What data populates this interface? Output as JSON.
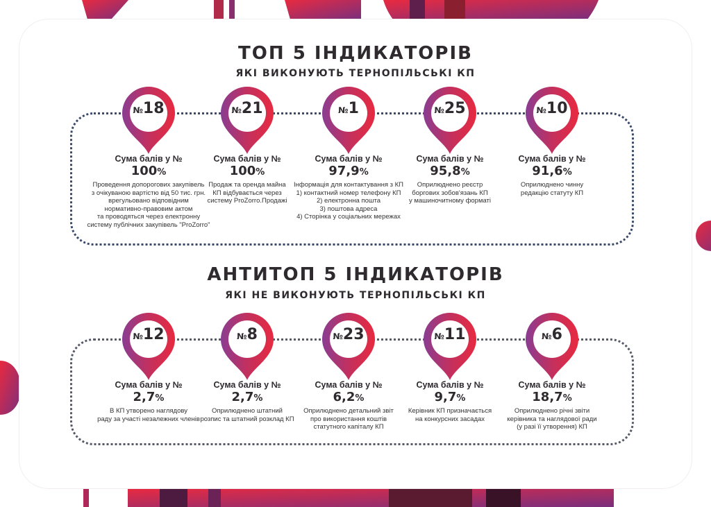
{
  "colors": {
    "accent_red": "#e32645",
    "accent_purple": "#8b3a8f",
    "dark_text": "#2e2a2e",
    "dots": "#3b4a6b"
  },
  "top": {
    "title": "ТОП 5 ІНДИКАТОРІВ",
    "subtitle": "ЯКІ ВИКОНУЮТЬ ТЕРНОПІЛЬСЬКІ КП",
    "items": [
      {
        "no": "№",
        "num": "18",
        "label": "Сума балів у №",
        "value": "100",
        "pct": "%",
        "desc": "Проведення допорогових закупівель\nз очікуваною вартістю від 50 тис. грн.\nврегульовано відповідним\nнормативно-правовим актом\nта проводяться через електронну\nсистему публічних закупівель \"ProZorro\""
      },
      {
        "no": "№",
        "num": "21",
        "label": "Сума балів у №",
        "value": "100",
        "pct": "%",
        "desc": "Продаж та оренда майна\nКП відбувається через\nсистему ProZorro.Продажі"
      },
      {
        "no": "№",
        "num": "1",
        "label": "Сума балів у №",
        "value": "97,9",
        "pct": "%",
        "desc": "Інформація для контактування з КП\n1) контактний номер телефону КП\n2) електронна пошта\n3) поштова адреса\n4) Сторінка у соціальних мережах"
      },
      {
        "no": "№",
        "num": "25",
        "label": "Сума балів у №",
        "value": "95,8",
        "pct": "%",
        "desc": "Оприлюднено реєстр\nборгових зобов'язань КП\nу машиночитному форматі"
      },
      {
        "no": "№",
        "num": "10",
        "label": "Сума балів у №",
        "value": "91,6",
        "pct": "%",
        "desc": "Оприлюднено чинну\nредакцію статуту КП"
      }
    ]
  },
  "anti": {
    "title": "АНТИТОП 5 ІНДИКАТОРІВ",
    "subtitle": "ЯКІ НЕ ВИКОНУЮТЬ ТЕРНОПІЛЬСЬКІ КП",
    "items": [
      {
        "no": "№",
        "num": "12",
        "label": "Сума балів у №",
        "value": "2,7",
        "pct": "%",
        "desc": "В КП утворено наглядову\nраду за участі незалежних членів"
      },
      {
        "no": "№",
        "num": "8",
        "label": "Сума балів у №",
        "value": "2,7",
        "pct": "%",
        "desc": "Оприлюднено штатний\nрозпис та штатний розклад КП"
      },
      {
        "no": "№",
        "num": "23",
        "label": "Сума балів у №",
        "value": "6,2",
        "pct": "%",
        "desc": "Оприлюднено детальний звіт\nпро використання коштів\nстатутного капіталу КП"
      },
      {
        "no": "№",
        "num": "11",
        "label": "Сума балів у №",
        "value": "9,7",
        "pct": "%",
        "desc": "Керівник КП призначається\nна конкурсних засадах"
      },
      {
        "no": "№",
        "num": "6",
        "label": "Сума балів у №",
        "value": "18,7",
        "pct": "%",
        "desc": "Оприлюднено річні звіти\nкерівника та наглядової ради\n(у разі її утворення) КП"
      }
    ]
  }
}
